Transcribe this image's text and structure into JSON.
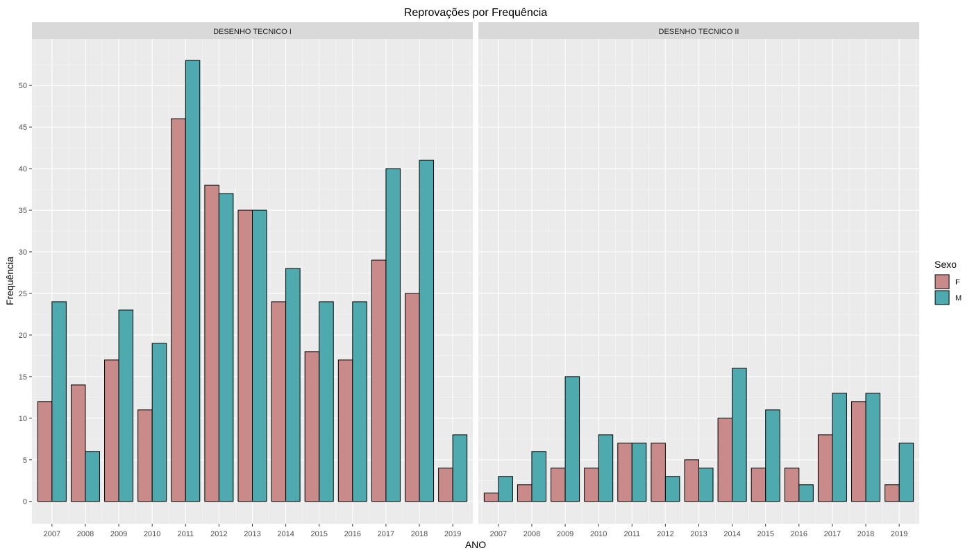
{
  "chart_data": {
    "type": "bar",
    "title": "Reprovações por Frequência",
    "xlabel": "ANO",
    "ylabel": "Frequência",
    "categories": [
      "2007",
      "2008",
      "2009",
      "2010",
      "2011",
      "2012",
      "2013",
      "2014",
      "2015",
      "2016",
      "2017",
      "2018",
      "2019"
    ],
    "ylim": [
      0,
      55
    ],
    "yticks": [
      "0",
      "5",
      "10",
      "15",
      "20",
      "25",
      "30",
      "35",
      "40",
      "45",
      "50"
    ],
    "grid": true,
    "legend": {
      "title": "Sexo",
      "placement": "right",
      "entries": [
        {
          "label": "F",
          "color": "#c98b89"
        },
        {
          "label": "M",
          "color": "#4eaaae"
        }
      ]
    },
    "facets": [
      {
        "name": "DESENHO TECNICO I",
        "series": [
          {
            "name": "F",
            "values": [
              12,
              14,
              17,
              11,
              46,
              38,
              35,
              24,
              18,
              17,
              29,
              25,
              4
            ]
          },
          {
            "name": "M",
            "values": [
              24,
              6,
              23,
              19,
              53,
              37,
              35,
              28,
              24,
              24,
              40,
              41,
              8
            ]
          }
        ]
      },
      {
        "name": "DESENHO TECNICO II",
        "series": [
          {
            "name": "F",
            "values": [
              1,
              2,
              4,
              4,
              7,
              7,
              5,
              10,
              4,
              4,
              8,
              12,
              2
            ]
          },
          {
            "name": "M",
            "values": [
              3,
              6,
              15,
              8,
              7,
              3,
              4,
              16,
              11,
              2,
              13,
              13,
              7
            ]
          }
        ]
      }
    ]
  }
}
